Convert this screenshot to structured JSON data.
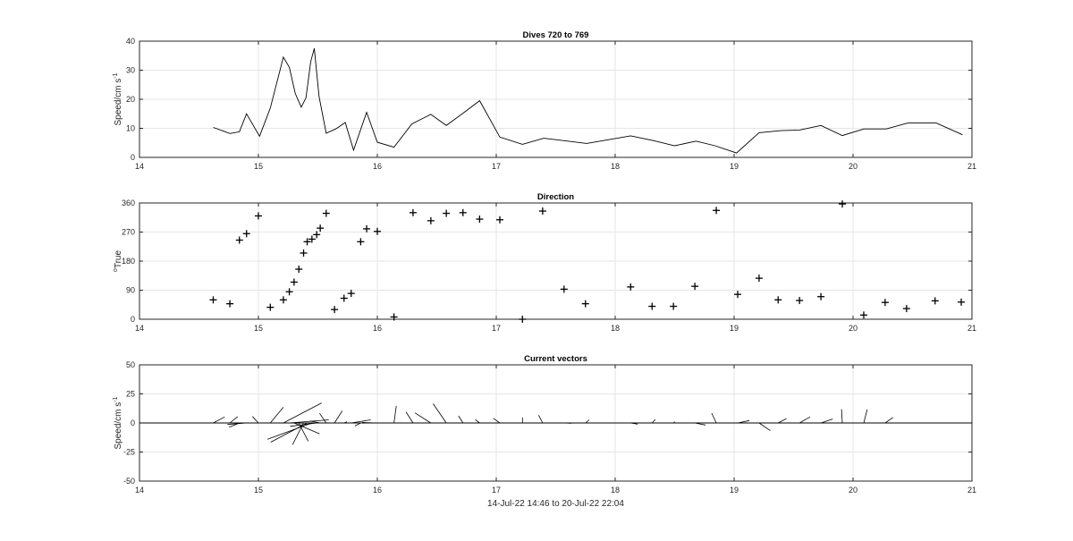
{
  "chart_data": [
    {
      "type": "line",
      "title": "Dives 720 to 769",
      "xlabel": "",
      "ylabel": "Speed/cm s",
      "ylabel_sup": "-1",
      "xlim": [
        14,
        21
      ],
      "ylim": [
        0,
        40
      ],
      "xticks": [
        "14",
        "15",
        "16",
        "17",
        "18",
        "19",
        "20",
        "21"
      ],
      "yticks": [
        "0",
        "10",
        "20",
        "30",
        "40"
      ],
      "grid": true,
      "series": [
        {
          "x": [
            14.62,
            14.76,
            14.84,
            14.9,
            15.01,
            15.1,
            15.21,
            15.26,
            15.31,
            15.36,
            15.4,
            15.44,
            15.47,
            15.51,
            15.57,
            15.65,
            15.73,
            15.8,
            15.91,
            16.0,
            16.14,
            16.29,
            16.45,
            16.58,
            16.72,
            16.86,
            17.03,
            17.22,
            17.4,
            17.76,
            18.13,
            18.32,
            18.5,
            18.68,
            18.84,
            19.02,
            19.21,
            19.39,
            19.55,
            19.73,
            19.91,
            20.09,
            20.28,
            20.46,
            20.7,
            20.92
          ],
          "y": [
            10.3,
            8.2,
            8.8,
            15.0,
            7.3,
            17.0,
            34.5,
            31.0,
            22.0,
            17.3,
            20.5,
            33.0,
            37.5,
            21.0,
            8.3,
            9.8,
            12.0,
            2.5,
            15.5,
            5.2,
            3.5,
            11.5,
            14.8,
            11.0,
            15.2,
            19.5,
            7.0,
            4.5,
            6.6,
            4.8,
            7.4,
            5.8,
            4.0,
            5.6,
            4.0,
            1.5,
            8.5,
            9.2,
            9.4,
            11.0,
            7.5,
            9.8,
            9.8,
            11.8,
            11.8,
            7.8
          ]
        }
      ]
    },
    {
      "type": "scatter",
      "title": "Direction",
      "xlabel": "",
      "ylabel": "True",
      "ylabel_sup": "o",
      "xlim": [
        14,
        21
      ],
      "ylim": [
        0,
        360
      ],
      "xticks": [
        "14",
        "15",
        "16",
        "17",
        "18",
        "19",
        "20",
        "21"
      ],
      "yticks": [
        "0",
        "90",
        "180",
        "270",
        "360"
      ],
      "grid": true,
      "series": [
        {
          "marker": "+",
          "x": [
            14.62,
            14.76,
            14.84,
            14.9,
            15.0,
            15.1,
            15.21,
            15.26,
            15.3,
            15.34,
            15.38,
            15.41,
            15.45,
            15.49,
            15.52,
            15.57,
            15.64,
            15.72,
            15.78,
            15.86,
            15.91,
            16.0,
            16.14,
            16.3,
            16.45,
            16.58,
            16.72,
            16.86,
            17.03,
            17.22,
            17.39,
            17.57,
            17.75,
            18.13,
            18.31,
            18.49,
            18.67,
            18.85,
            19.03,
            19.21,
            19.37,
            19.55,
            19.73,
            19.91,
            20.09,
            20.27,
            20.45,
            20.69,
            20.91
          ],
          "y": [
            60,
            48,
            245,
            265,
            320,
            37,
            60,
            85,
            115,
            155,
            205,
            240,
            248,
            262,
            282,
            328,
            30,
            65,
            80,
            240,
            280,
            272,
            7,
            330,
            305,
            328,
            330,
            310,
            308,
            0,
            335,
            93,
            48,
            100,
            40,
            40,
            102,
            337,
            77,
            127,
            60,
            58,
            70,
            357,
            13,
            52,
            33,
            57,
            53
          ]
        }
      ]
    },
    {
      "type": "vector",
      "title": "Current vectors",
      "xlabel": "14-Jul-22 14:46 to 20-Jul-22 22:04",
      "ylabel": "Speed/cm s",
      "ylabel_sup": "-1",
      "xlim": [
        14,
        21
      ],
      "ylim": [
        -50,
        50
      ],
      "xticks": [
        "14",
        "15",
        "16",
        "17",
        "18",
        "19",
        "20",
        "21"
      ],
      "yticks": [
        "-50",
        "-25",
        "0",
        "25",
        "50"
      ],
      "grid": true,
      "baseline": 0
    }
  ]
}
